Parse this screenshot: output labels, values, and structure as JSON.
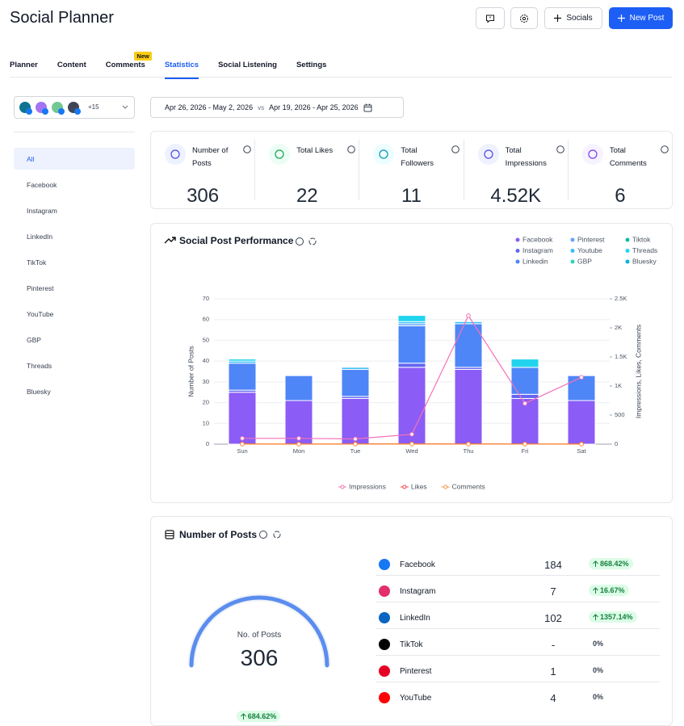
{
  "header": {
    "title": "Social Planner",
    "socials_button": "Socials",
    "new_post_button": "New Post"
  },
  "tabs": {
    "items": [
      "Planner",
      "Content",
      "Comments",
      "Statistics",
      "Social Listening",
      "Settings"
    ],
    "badge": "New",
    "badge_index": 2,
    "active_index": 3
  },
  "account_selector": {
    "more": "+15"
  },
  "date_range": {
    "current": "Apr 26, 2026 - May 2, 2026",
    "vs": "vs",
    "previous": "Apr 19, 2026 - Apr 25, 2026"
  },
  "sidebar": {
    "items": [
      "All",
      "Facebook",
      "Instagram",
      "LinkedIn",
      "TikTok",
      "Pinterest",
      "YouTube",
      "GBP",
      "Threads",
      "Bluesky"
    ],
    "active_index": 0
  },
  "stats": [
    {
      "label": "Number of Posts",
      "value": 306
    },
    {
      "label": "Total Likes",
      "value": 22
    },
    {
      "label": "Total Followers",
      "value": 11
    },
    {
      "label": "Total Impressions",
      "value": "4.52K"
    },
    {
      "label": "Total Comments",
      "value": 6
    }
  ],
  "chart_data": {
    "type": "bar",
    "stacked": true,
    "title": "Social Post Performance",
    "categories": [
      "Sun",
      "Mon",
      "Tue",
      "Wed",
      "Thu",
      "Fri",
      "Sat"
    ],
    "y_label": "Number of Posts",
    "y2_label": "Impressions, Likes, Comments",
    "ylim": [
      0,
      70
    ],
    "yticks": [
      0,
      10,
      20,
      30,
      40,
      50,
      60,
      70
    ],
    "y2lim": [
      0,
      2500
    ],
    "y2ticks": [
      0,
      500,
      {
        "value": 1000,
        "label": "1K"
      },
      {
        "value": 1500,
        "label": "1.5K"
      },
      {
        "value": 2000,
        "label": "2K"
      },
      {
        "value": 2500,
        "label": "2.5K"
      }
    ],
    "grid": true,
    "series": [
      {
        "name": "Facebook",
        "color": "#8b5cf6",
        "values": [
          25,
          21,
          22,
          37,
          36,
          22,
          21
        ]
      },
      {
        "name": "Instagram",
        "color": "#6366f1",
        "values": [
          1,
          0,
          1,
          2,
          1,
          2,
          0
        ]
      },
      {
        "name": "Linkedin",
        "color": "#4f86f7",
        "values": [
          13,
          12,
          13,
          18,
          21,
          13,
          12
        ]
      },
      {
        "name": "Pinterest",
        "color": "#60a5fa",
        "values": [
          0,
          0,
          0,
          1,
          0,
          0,
          0
        ]
      },
      {
        "name": "Youtube",
        "color": "#38bdf8",
        "values": [
          1,
          0,
          1,
          1,
          1,
          0,
          0
        ]
      },
      {
        "name": "GBP",
        "color": "#2dd4bf",
        "values": [
          0,
          0,
          0,
          0,
          0,
          0,
          0
        ]
      },
      {
        "name": "Tiktok",
        "color": "#14b8a6",
        "values": [
          0,
          0,
          0,
          0,
          0,
          0,
          0
        ]
      },
      {
        "name": "Threads",
        "color": "#22d3ee",
        "values": [
          1,
          0,
          0,
          3,
          0,
          4,
          0
        ]
      },
      {
        "name": "Bluesky",
        "color": "#06b6d4",
        "values": [
          0,
          0,
          0,
          0,
          0,
          0,
          0
        ]
      },
      {
        "name": "Impressions",
        "color": "#f472b6",
        "axis": "y2",
        "values": [
          100,
          100,
          90,
          170,
          2210,
          700,
          1150
        ]
      },
      {
        "name": "Likes",
        "color": "#ef4444",
        "axis": "y2",
        "values": [
          3,
          2,
          3,
          5,
          4,
          3,
          2
        ]
      },
      {
        "name": "Comments",
        "color": "#fb923c",
        "axis": "y2",
        "values": [
          1,
          0,
          1,
          2,
          1,
          1,
          0
        ]
      }
    ]
  },
  "posts_card": {
    "title": "Number of Posts",
    "gauge_label": "No. of Posts",
    "gauge_value": 306,
    "gauge_change": "684.62%",
    "rows": [
      {
        "name": "Facebook",
        "count": 184,
        "change": "868.42%",
        "direction": "up"
      },
      {
        "name": "Instagram",
        "count": 7,
        "change": "16.67%",
        "direction": "up"
      },
      {
        "name": "LinkedIn",
        "count": 102,
        "change": "1357.14%",
        "direction": "up"
      },
      {
        "name": "TikTok",
        "count": "-",
        "change": "0%",
        "direction": "none"
      },
      {
        "name": "Pinterest",
        "count": 1,
        "change": "0%",
        "direction": "none"
      },
      {
        "name": "YouTube",
        "count": 4,
        "change": "0%",
        "direction": "none"
      }
    ]
  }
}
